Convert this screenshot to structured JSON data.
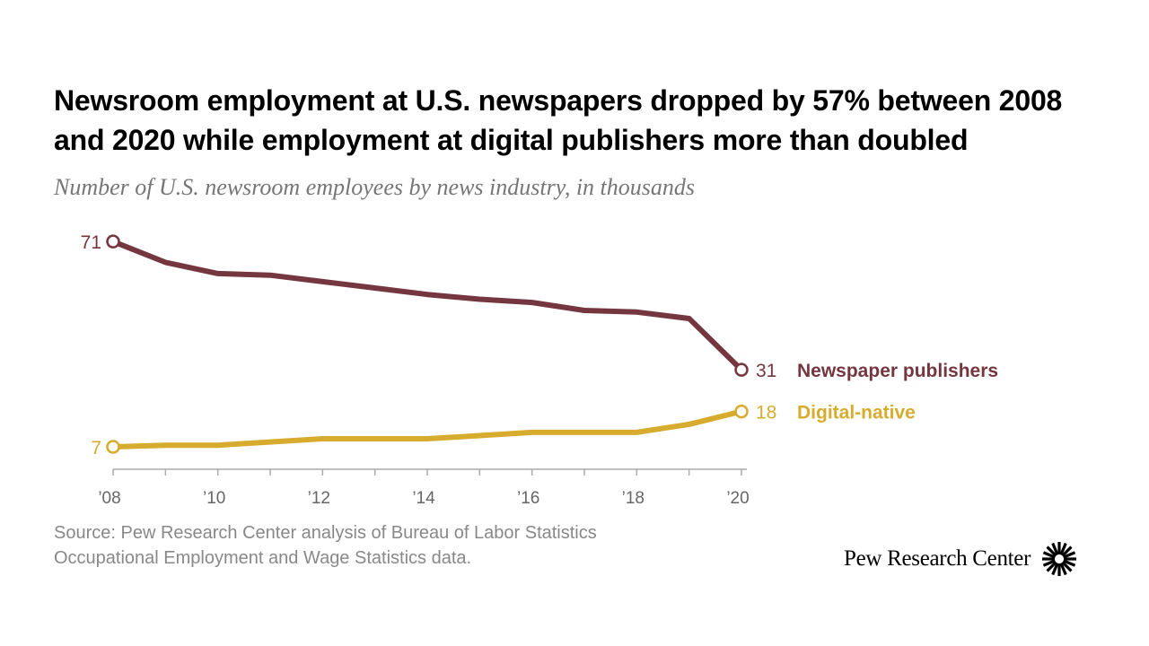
{
  "title": "Newsroom employment at U.S. newspapers dropped by 57% between 2008 and 2020 while employment at digital publishers more than doubled",
  "subtitle": "Number of U.S. newsroom employees by news industry, in thousands",
  "source": "Source: Pew Research Center analysis of Bureau of Labor Statistics Occupational Employment and Wage Statistics data.",
  "brand": {
    "name": "Pew Research Center",
    "logo_icon": "pew-sunburst-icon"
  },
  "colors": {
    "newspaper": "#74363F",
    "digital": "#D7AC2E",
    "axis": "#AAAAAA",
    "tick_text": "#666666"
  },
  "chart_data": {
    "type": "line",
    "title": "Newsroom employment at U.S. newspapers dropped by 57% between 2008 and 2020 while employment at digital publishers more than doubled",
    "subtitle": "Number of U.S. newsroom employees by news industry, in thousands",
    "xlabel": "",
    "ylabel": "",
    "x": [
      2008,
      2009,
      2010,
      2011,
      2012,
      2013,
      2014,
      2015,
      2016,
      2017,
      2018,
      2019,
      2020
    ],
    "xlim": [
      2008,
      2020
    ],
    "ylim": [
      0,
      76
    ],
    "x_ticks": [
      2008,
      2010,
      2012,
      2014,
      2016,
      2018,
      2020
    ],
    "x_tick_labels": [
      "’08",
      "’10",
      "’12",
      "’14",
      "’16",
      "’18",
      "’20"
    ],
    "grid": false,
    "series": [
      {
        "name": "Newspaper publishers",
        "color": "#74363F",
        "values": [
          71,
          64.5,
          61,
          60.5,
          58.5,
          56.5,
          54.5,
          53,
          52,
          49.5,
          49,
          47,
          31
        ],
        "start_label": "71",
        "end_label": "31"
      },
      {
        "name": "Digital-native",
        "color": "#D7AC2E",
        "values": [
          7,
          7.5,
          7.5,
          8.5,
          9.5,
          9.5,
          9.5,
          10.5,
          11.5,
          11.5,
          11.5,
          14,
          18
        ],
        "start_label": "7",
        "end_label": "18"
      }
    ]
  }
}
